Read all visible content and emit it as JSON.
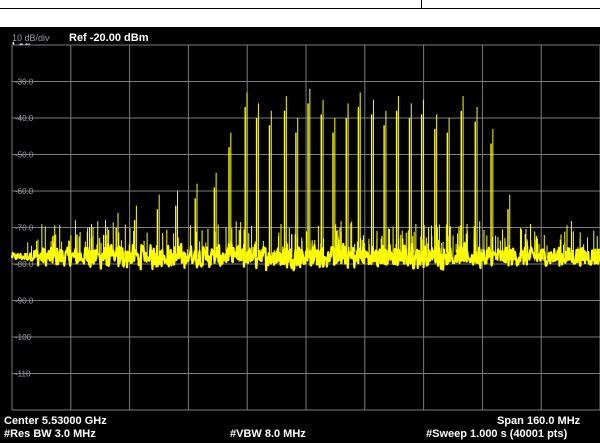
{
  "chart_data": {
    "type": "line",
    "title": "",
    "xlabel": "",
    "ylabel": "",
    "scale_label": "10 dB/div",
    "scale_type_label": "Log",
    "reference_label": "Ref -20.00 dBm",
    "ylim": [
      -120,
      -20
    ],
    "xlim_ghz": [
      5.45,
      5.61
    ],
    "center_frequency_ghz": 5.53,
    "span_mhz": 160.0,
    "resolution_bandwidth_mhz": 3.0,
    "video_bandwidth_mhz": 8.0,
    "sweep_time_s": 1.0,
    "sweep_points": 40001,
    "grid": true,
    "y_tick_labels": [
      "-30.0",
      "-40.0",
      "-50.0",
      "-60.0",
      "-70.0",
      "-80.0",
      "-90.0",
      "-100",
      "-110"
    ],
    "trace_color": "#ffff00",
    "grid_color": "#7d7d7d",
    "background_color": "#000000",
    "series": [
      {
        "noise_floor_dbm": -78,
        "spurs_ghz": [
          5.4714,
          5.4752,
          5.4786,
          5.4836,
          5.4898,
          5.4948,
          5.5001,
          5.5053,
          5.5093,
          5.5137,
          5.5168,
          5.5203,
          5.5244,
          5.5275,
          5.5308,
          5.5344,
          5.5376,
          5.5412,
          5.5445,
          5.5481,
          5.5515,
          5.5549,
          5.5584,
          5.5617,
          5.5653,
          5.5687,
          5.5725,
          5.5763,
          5.5806,
          5.5852
        ],
        "spurs_dbm": [
          -73,
          -72,
          -70,
          -68,
          -65,
          -64,
          -62,
          -59,
          -48,
          -37,
          -40,
          -42,
          -38,
          -44,
          -36,
          -39,
          -44,
          -40,
          -37,
          -39,
          -42,
          -38,
          -40,
          -39,
          -43,
          -44,
          -38,
          -41,
          -47,
          -65
        ]
      }
    ]
  },
  "bottom_bar": {
    "center": "Center 5.53000 GHz",
    "rbw": "#Res BW 3.0 MHz",
    "vbw": "#VBW 8.0 MHz",
    "span": "Span 160.0 MHz",
    "sweep": "#Sweep  1.000 s (40001 pts)"
  }
}
